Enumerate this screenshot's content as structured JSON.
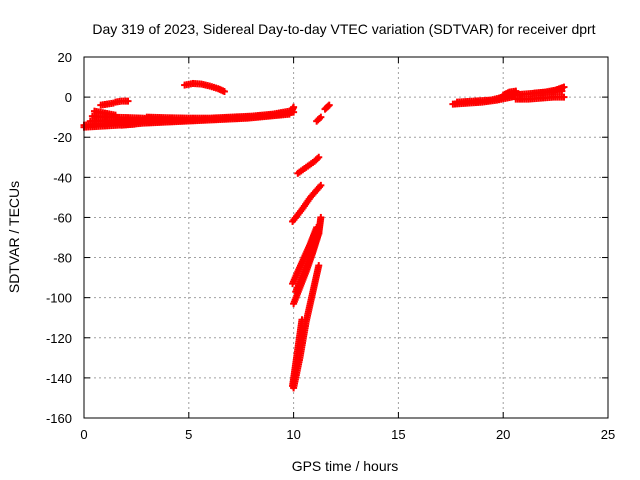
{
  "chart_data": {
    "type": "scatter",
    "title": "Day 319 of 2023, Sidereal Day-to-day VTEC variation (SDTVAR) for receiver dprt",
    "xlabel": "GPS time / hours",
    "ylabel": "SDTVAR / TECUs",
    "xlim": [
      0,
      25
    ],
    "ylim": [
      -160,
      20
    ],
    "xticks": [
      0,
      5,
      10,
      15,
      20,
      25
    ],
    "yticks": [
      -160,
      -140,
      -120,
      -100,
      -80,
      -60,
      -40,
      -20,
      0,
      20
    ],
    "grid": true,
    "marker": "+",
    "color": "#ff0000",
    "segments": [
      {
        "x": [
          0.0,
          0.6,
          1.2,
          1.8,
          2.4
        ],
        "y": [
          -14,
          -13.5,
          -13,
          -12.5,
          -12
        ]
      },
      {
        "x": [
          0.0,
          0.8,
          1.6,
          2.4
        ],
        "y": [
          -15,
          -14.5,
          -14,
          -13.5
        ]
      },
      {
        "x": [
          0.3,
          1.0,
          1.7,
          2.5,
          3.3,
          4.1
        ],
        "y": [
          -12,
          -11.8,
          -11.6,
          -11.5,
          -11.4,
          -11.2
        ]
      },
      {
        "x": [
          0.4,
          1.2,
          2.0,
          2.8,
          3.6,
          4.4,
          5.2
        ],
        "y": [
          -9.5,
          -10,
          -10.2,
          -10.5,
          -11,
          -11.5,
          -11.5
        ]
      },
      {
        "x": [
          0.5,
          1.0,
          1.5
        ],
        "y": [
          -7,
          -8,
          -9
        ]
      },
      {
        "x": [
          0.8,
          1.1,
          1.4
        ],
        "y": [
          -4,
          -3.5,
          -3
        ]
      },
      {
        "x": [
          1.5,
          1.8,
          2.1
        ],
        "y": [
          -2.5,
          -2,
          -2
        ]
      },
      {
        "x": [
          1.8,
          2.8,
          3.8,
          4.8,
          5.8,
          6.8,
          7.8,
          8.8,
          9.8
        ],
        "y": [
          -14,
          -13,
          -12.5,
          -12,
          -11.5,
          -11,
          -10.5,
          -9.5,
          -8.5
        ]
      },
      {
        "x": [
          2.0,
          3.0,
          4.0,
          5.0,
          6.0,
          7.0,
          8.0,
          9.0,
          10.0
        ],
        "y": [
          -12,
          -12.5,
          -12,
          -11.5,
          -11,
          -10.5,
          -10,
          -9,
          -7.5
        ]
      },
      {
        "x": [
          3.0,
          4.0,
          5.0,
          6.0,
          7.0,
          8.0,
          9.0,
          9.8
        ],
        "y": [
          -10,
          -10.3,
          -10.5,
          -10.5,
          -10,
          -9.5,
          -8.5,
          -7
        ]
      },
      {
        "x": [
          4.8,
          5.2,
          5.6,
          6.0,
          6.4,
          6.7
        ],
        "y": [
          6,
          6.8,
          6.5,
          5.5,
          4.2,
          2.8
        ]
      },
      {
        "x": [
          9.9,
          9.95,
          10.0
        ],
        "y": [
          -7,
          -6,
          -5
        ]
      },
      {
        "x": [
          10.2,
          10.6,
          11.0,
          11.2
        ],
        "y": [
          -38,
          -35,
          -32,
          -30
        ]
      },
      {
        "x": [
          9.95,
          10.4,
          10.8,
          11.3
        ],
        "y": [
          -62,
          -56,
          -50,
          -44
        ]
      },
      {
        "x": [
          10.0,
          10.3,
          10.6,
          10.9,
          11.2,
          11.3
        ],
        "y": [
          -103,
          -95,
          -87,
          -78,
          -68,
          -60
        ]
      },
      {
        "x": [
          9.95,
          10.2,
          10.5,
          10.8,
          11.1
        ],
        "y": [
          -93,
          -87,
          -80,
          -73,
          -65
        ]
      },
      {
        "x": [
          10.1,
          10.4,
          10.7,
          11.0,
          11.2
        ],
        "y": [
          -97,
          -90,
          -82,
          -74,
          -68
        ]
      },
      {
        "x": [
          10.0,
          10.3,
          10.6,
          10.9,
          11.2
        ],
        "y": [
          -145,
          -130,
          -112,
          -98,
          -84
        ]
      },
      {
        "x": [
          9.95,
          10.1,
          10.25,
          10.4
        ],
        "y": [
          -144,
          -133,
          -122,
          -111
        ]
      },
      {
        "x": [
          11.1,
          11.3
        ],
        "y": [
          -12,
          -10
        ]
      },
      {
        "x": [
          11.5,
          11.6,
          11.7
        ],
        "y": [
          -6,
          -5,
          -4
        ]
      },
      {
        "x": [
          17.6,
          18.3,
          19.0,
          19.7,
          20.4
        ],
        "y": [
          -3.5,
          -3,
          -2.5,
          -1.5,
          0
        ]
      },
      {
        "x": [
          17.8,
          18.6,
          19.4,
          20.2,
          20.6
        ],
        "y": [
          -2.5,
          -2,
          -1.5,
          0.5,
          2.5
        ]
      },
      {
        "x": [
          20.0,
          20.3,
          20.6
        ],
        "y": [
          1,
          2.5,
          3
        ]
      },
      {
        "x": [
          20.6,
          21.2,
          21.8,
          22.4,
          22.9
        ],
        "y": [
          -1,
          -1,
          -0.5,
          0,
          0
        ]
      },
      {
        "x": [
          20.4,
          21.0,
          21.6,
          22.2,
          22.8
        ],
        "y": [
          1,
          1.5,
          2,
          2.5,
          3
        ]
      },
      {
        "x": [
          21.5,
          22.0,
          22.5,
          22.9
        ],
        "y": [
          2,
          2.5,
          3.5,
          5
        ]
      }
    ]
  }
}
